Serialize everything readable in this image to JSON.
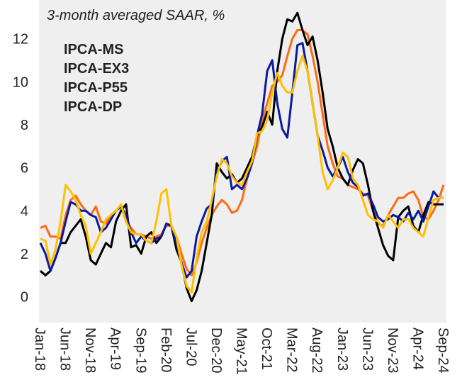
{
  "chart_data": {
    "type": "line",
    "title": "3-month averaged SAAR, %",
    "categories": [
      "Jan-18",
      null,
      null,
      null,
      null,
      "Jun-18",
      null,
      null,
      null,
      null,
      "Nov-18",
      null,
      null,
      null,
      null,
      "Apr-19",
      null,
      null,
      null,
      null,
      "Sep-19",
      null,
      null,
      null,
      null,
      "Feb-20",
      null,
      null,
      null,
      null,
      "Jul-20",
      null,
      null,
      null,
      null,
      "Dec-20",
      null,
      null,
      null,
      null,
      "May-21",
      null,
      null,
      null,
      null,
      "Oct-21",
      null,
      null,
      null,
      null,
      "Mar-22",
      null,
      null,
      null,
      null,
      "Aug-22",
      null,
      null,
      null,
      null,
      "Jan-23",
      null,
      null,
      null,
      null,
      "Jun-23",
      null,
      null,
      null,
      null,
      "Nov-23",
      null,
      null,
      null,
      null,
      "Apr-24",
      null,
      null,
      null,
      null,
      "Sep-24"
    ],
    "series": [
      {
        "name": "IPCA-MS",
        "color": "#ff6a13",
        "values": [
          3.2,
          3.3,
          2.8,
          2.8,
          2.7,
          3.8,
          4.5,
          4.7,
          4.3,
          4.0,
          3.8,
          4.2,
          3.5,
          3.4,
          3.8,
          4.0,
          4.2,
          3.5,
          3.2,
          2.9,
          2.9,
          2.8,
          2.7,
          2.8,
          2.9,
          3.3,
          3.3,
          2.8,
          2.0,
          1.3,
          1.0,
          1.6,
          2.5,
          3.2,
          3.8,
          4.2,
          4.5,
          4.3,
          3.9,
          4.0,
          4.5,
          5.5,
          6.2,
          7.0,
          8.2,
          9.0,
          9.8,
          10.0,
          10.3,
          11.2,
          12.0,
          12.4,
          12.4,
          12.2,
          11.2,
          10.0,
          8.5,
          7.0,
          6.2,
          5.6,
          5.5,
          5.2,
          5.1,
          5.0,
          4.8,
          4.7,
          4.0,
          3.4,
          3.3,
          3.8,
          4.2,
          4.6,
          4.6,
          4.8,
          4.9,
          4.5,
          3.7,
          3.6,
          4.0,
          4.5,
          5.2
        ]
      },
      {
        "name": "IPCA-EX3",
        "color": "#000000",
        "values": [
          1.2,
          1.0,
          1.2,
          1.8,
          2.5,
          2.5,
          3.0,
          3.3,
          3.6,
          2.8,
          1.7,
          1.5,
          2.0,
          2.5,
          2.3,
          3.5,
          4.0,
          4.3,
          2.3,
          2.4,
          2.0,
          2.8,
          3.0,
          2.5,
          2.8,
          3.4,
          3.3,
          2.2,
          1.6,
          0.4,
          -0.2,
          0.3,
          1.2,
          2.5,
          3.8,
          6.2,
          5.8,
          5.5,
          5.7,
          5.3,
          5.5,
          6.0,
          6.5,
          7.5,
          7.9,
          8.6,
          8.0,
          10.5,
          12.0,
          12.9,
          12.8,
          13.2,
          12.4,
          11.7,
          12.1,
          11.0,
          9.5,
          7.8,
          7.0,
          6.0,
          5.5,
          5.2,
          5.9,
          6.4,
          6.2,
          5.2,
          4.0,
          3.2,
          2.4,
          1.9,
          1.7,
          3.7,
          4.0,
          4.2,
          3.3,
          3.0,
          3.8,
          4.4,
          4.3,
          4.3,
          4.3
        ]
      },
      {
        "name": "IPCA-P55",
        "color": "#0a1aa0",
        "values": [
          2.5,
          2.0,
          1.2,
          1.8,
          2.5,
          3.5,
          4.4,
          4.3,
          4.0,
          4.0,
          3.8,
          3.7,
          3.0,
          3.2,
          3.6,
          4.0,
          4.2,
          3.8,
          3.0,
          2.5,
          2.8,
          2.6,
          2.5,
          2.7,
          2.8,
          3.4,
          3.3,
          2.5,
          1.6,
          0.9,
          1.2,
          2.8,
          3.5,
          4.1,
          4.3,
          5.8,
          6.3,
          6.5,
          5.0,
          5.2,
          5.0,
          5.5,
          6.2,
          7.5,
          8.5,
          10.5,
          11.0,
          9.0,
          7.8,
          7.4,
          9.5,
          11.7,
          11.8,
          10.5,
          9.0,
          7.5,
          6.8,
          6.0,
          5.6,
          6.0,
          6.5,
          5.8,
          5.3,
          5.1,
          4.7,
          4.8,
          4.3,
          3.7,
          3.5,
          3.6,
          3.8,
          3.7,
          3.5,
          3.9,
          3.6,
          4.0,
          3.5,
          4.2,
          4.9,
          4.6,
          4.6
        ]
      },
      {
        "name": "IPCA-DP",
        "color": "#ffc000",
        "values": [
          2.7,
          2.6,
          1.5,
          2.2,
          3.5,
          5.2,
          4.9,
          4.5,
          3.8,
          3.3,
          2.0,
          2.5,
          3.0,
          3.6,
          3.8,
          4.0,
          4.3,
          3.5,
          3.0,
          2.9,
          2.9,
          2.6,
          2.5,
          3.5,
          4.8,
          5.0,
          3.3,
          2.8,
          1.5,
          0.5,
          0.2,
          1.8,
          3.0,
          3.5,
          4.5,
          5.6,
          6.4,
          6.2,
          5.6,
          5.3,
          5.2,
          5.8,
          6.3,
          7.6,
          7.7,
          8.2,
          9.5,
          10.4,
          9.8,
          9.5,
          9.5,
          10.5,
          11.2,
          10.5,
          9.0,
          7.5,
          5.8,
          5.0,
          5.4,
          6.0,
          6.7,
          6.5,
          5.5,
          5.2,
          4.5,
          3.8,
          3.6,
          3.5,
          3.2,
          3.8,
          3.5,
          3.2,
          3.6,
          3.6,
          3.2,
          3.0,
          2.8,
          3.7,
          4.5,
          4.6,
          4.6
        ]
      }
    ],
    "ylim": [
      -1.2,
      13.8
    ],
    "yticks": [
      0,
      2,
      4,
      6,
      8,
      10,
      12
    ],
    "grid": false
  }
}
